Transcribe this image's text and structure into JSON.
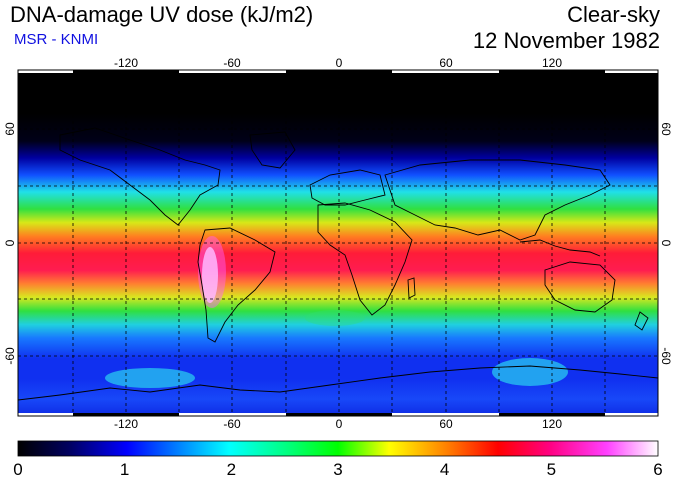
{
  "header": {
    "title": "DNA-damage UV dose (kJ/m2)",
    "subtitle": "MSR - KNMI",
    "condition": "Clear-sky",
    "date": "12 November 1982"
  },
  "map": {
    "lon_ticks": [
      "-120",
      "-60",
      "0",
      "60",
      "120"
    ],
    "lat_ticks": [
      "60",
      "0",
      "-60"
    ]
  },
  "colorbar": {
    "ticks": [
      "0",
      "1",
      "2",
      "3",
      "4",
      "5",
      "6"
    ],
    "min": 0,
    "max": 6
  }
}
